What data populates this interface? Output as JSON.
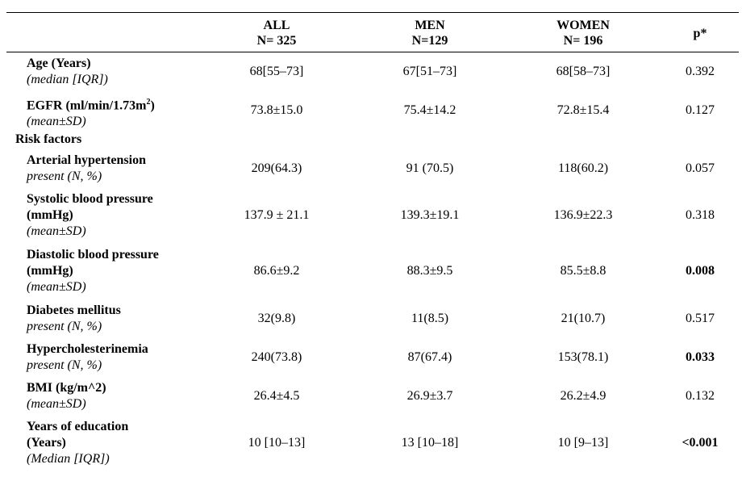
{
  "header": {
    "all": {
      "title": "ALL",
      "n": "N= 325"
    },
    "men": {
      "title": "MEN",
      "n": "N=129"
    },
    "women": {
      "title": "WOMEN",
      "n": "N= 196"
    },
    "p": "p*"
  },
  "rows": {
    "age": {
      "label": "Age (Years)",
      "sub": "(median [IQR])",
      "all": "68[55–73]",
      "men": "67[51–73]",
      "women": "68[58–73]",
      "p": "0.392"
    },
    "egfr": {
      "label": "EGFR (ml/min/1.73m",
      "label_sup": "2",
      "label_end": ")",
      "sub": "(mean±SD)",
      "all": "73.8±15.0",
      "men": "75.4±14.2",
      "women": "72.8±15.4",
      "p": "0.127"
    },
    "risk_section": "Risk factors",
    "hypertension": {
      "label": "Arterial hypertension",
      "sub": "present (N, %)",
      "all": "209(64.3)",
      "men": "91 (70.5)",
      "women": "118(60.2)",
      "p": "0.057"
    },
    "systolic": {
      "label1": "Systolic blood pressure",
      "label2": "(mmHg)",
      "sub": "(mean±SD)",
      "all": "137.9 ± 21.1",
      "men": "139.3±19.1",
      "women": "136.9±22.3",
      "p": "0.318"
    },
    "diastolic": {
      "label1": "Diastolic blood pressure",
      "label2": "(mmHg)",
      "sub": "(mean±SD)",
      "all": "86.6±9.2",
      "men": "88.3±9.5",
      "women": "85.5±8.8",
      "p": "0.008"
    },
    "diabetes": {
      "label": "Diabetes mellitus",
      "sub": "present (N, %)",
      "all": "32(9.8)",
      "men": "11(8.5)",
      "women": "21(10.7)",
      "p": "0.517"
    },
    "hyperchol": {
      "label": "Hypercholesterinemia",
      "sub": "present (N, %)",
      "all": "240(73.8)",
      "men": "87(67.4)",
      "women": "153(78.1)",
      "p": "0.033"
    },
    "bmi": {
      "label": "BMI (kg/m^2)",
      "sub": "(mean±SD)",
      "all": "26.4±4.5",
      "men": "26.9±3.7",
      "women": "26.2±4.9",
      "p": "0.132"
    },
    "education": {
      "label1": "Years of education",
      "label2": "(Years)",
      "sub": "(Median [IQR])",
      "all": "10 [10–13]",
      "men": "13 [10–18]",
      "women": "10 [9–13]",
      "p": "<0.001"
    }
  }
}
